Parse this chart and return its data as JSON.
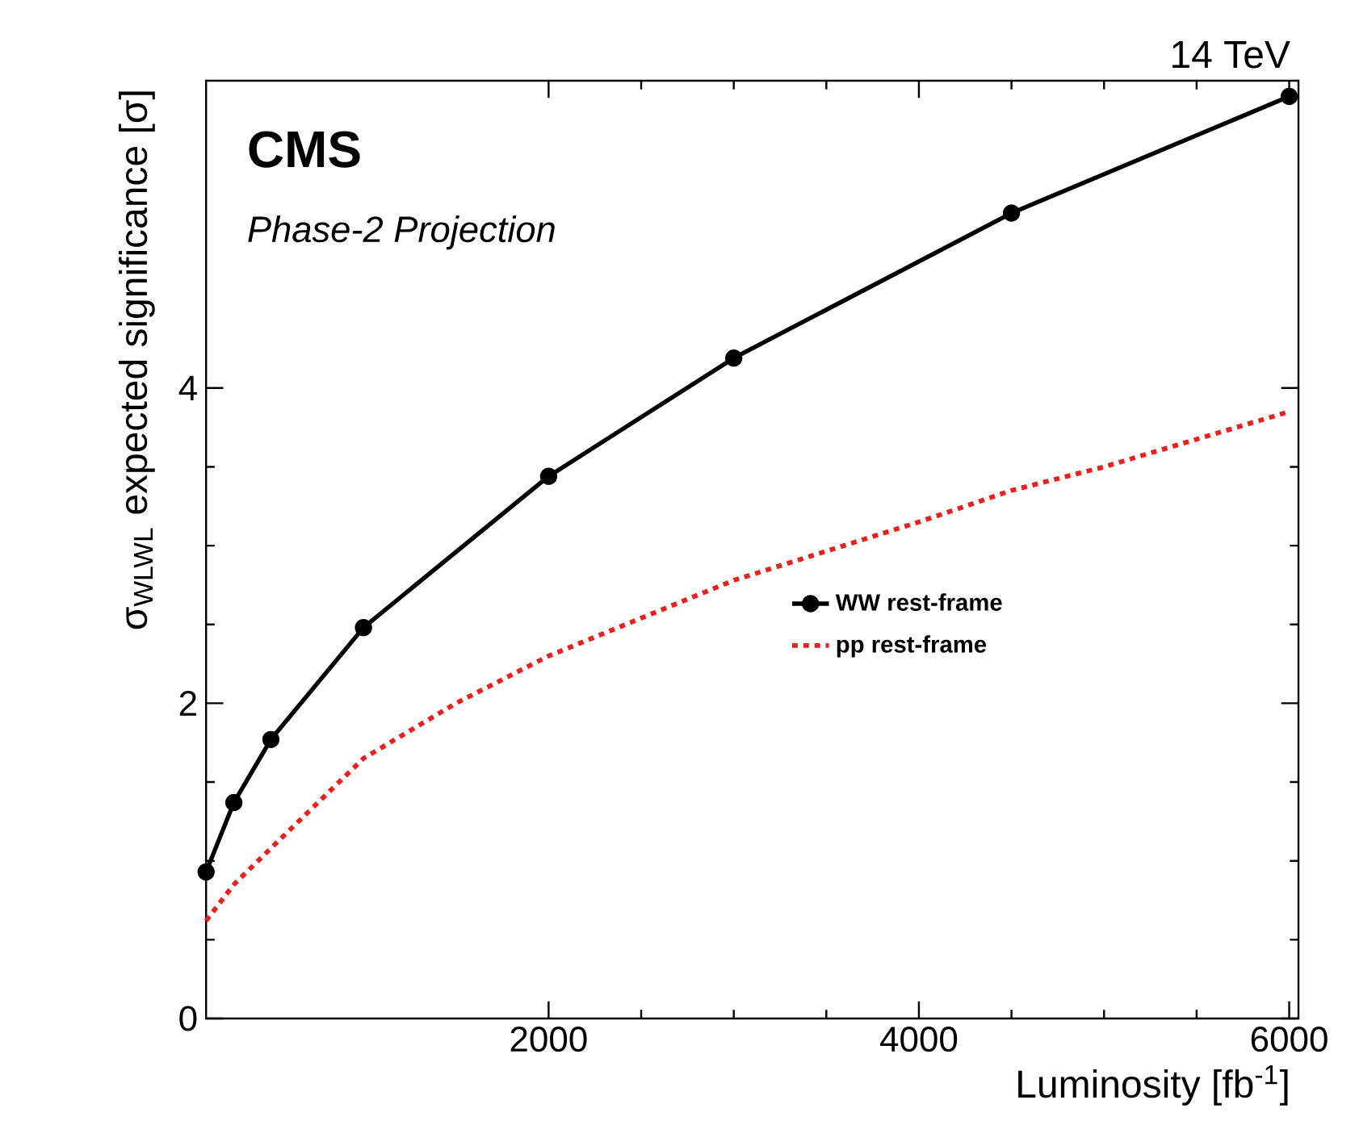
{
  "chart_data": {
    "type": "line",
    "xlabel": "Luminosity [fb$^{-1}$]",
    "ylabel": "σ$_{WLWL}$ expected significance [σ]",
    "xlim": [
      150,
      6050
    ],
    "ylim": [
      0,
      5.95
    ],
    "xticks": [
      2000,
      4000,
      6000
    ],
    "yticks": [
      0,
      2,
      4
    ],
    "legend": "right",
    "grid": false,
    "annotations": [
      "CMS",
      "Phase-2 Projection",
      "14 TeV"
    ],
    "series": [
      {
        "name": "WW rest-frame",
        "color": "#000000",
        "marker": "circle",
        "line_style": "solid",
        "x": [
          150,
          300,
          500,
          1000,
          2000,
          3000,
          4500,
          6000
        ],
        "values": [
          0.93,
          1.37,
          1.77,
          2.48,
          3.44,
          4.19,
          5.11,
          5.85
        ]
      },
      {
        "name": "pp rest-frame",
        "color": "#e8201e",
        "marker": "none",
        "line_style": "dotted",
        "x": [
          150,
          300,
          500,
          1000,
          1500,
          2000,
          3000,
          4000,
          4500,
          5000,
          6000
        ],
        "values": [
          0.62,
          0.85,
          1.08,
          1.65,
          2.0,
          2.3,
          2.78,
          3.15,
          3.35,
          3.5,
          3.85
        ]
      }
    ]
  }
}
